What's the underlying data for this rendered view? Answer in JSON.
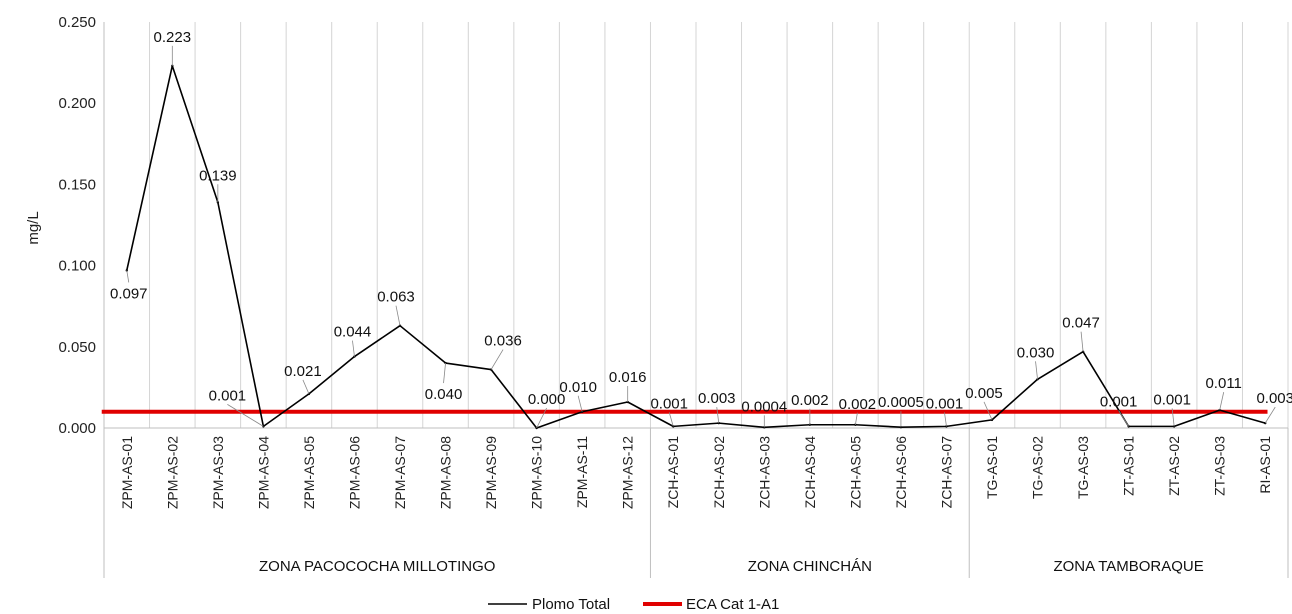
{
  "chart_data": {
    "type": "line",
    "title": "",
    "ylabel": "mg/L",
    "xlabel": "",
    "ylim": [
      0,
      0.25
    ],
    "yticks": [
      "0.000",
      "0.050",
      "0.100",
      "0.150",
      "0.200",
      "0.250"
    ],
    "grid": "vertical",
    "legend_position": "bottom",
    "categories": [
      "ZPM-AS-01",
      "ZPM-AS-02",
      "ZPM-AS-03",
      "ZPM-AS-04",
      "ZPM-AS-05",
      "ZPM-AS-06",
      "ZPM-AS-07",
      "ZPM-AS-08",
      "ZPM-AS-09",
      "ZPM-AS-10",
      "ZPM-AS-11",
      "ZPM-AS-12",
      "ZCH-AS-01",
      "ZCH-AS-02",
      "ZCH-AS-03",
      "ZCH-AS-04",
      "ZCH-AS-05",
      "ZCH-AS-06",
      "ZCH-AS-07",
      "TG-AS-01",
      "TG-AS-02",
      "TG-AS-03",
      "ZT-AS-01",
      "ZT-AS-02",
      "ZT-AS-03",
      "RI-AS-01"
    ],
    "groups": [
      {
        "label": "ZONA PACOCOCHA MILLOTINGO",
        "start": 0,
        "end": 11
      },
      {
        "label": "ZONA CHINCHÁN",
        "start": 12,
        "end": 18
      },
      {
        "label": "ZONA TAMBORAQUE",
        "start": 19,
        "end": 25
      }
    ],
    "series": [
      {
        "name": "Plomo Total",
        "color": "#000000",
        "values": [
          0.097,
          0.223,
          0.139,
          0.001,
          0.021,
          0.044,
          0.063,
          0.04,
          0.036,
          0.0,
          0.01,
          0.016,
          0.001,
          0.003,
          0.0004,
          0.002,
          0.002,
          0.0005,
          0.001,
          0.005,
          0.03,
          0.047,
          0.001,
          0.001,
          0.011,
          0.003
        ],
        "labels": [
          "0.097",
          "0.223",
          "0.139",
          "0.001",
          "0.021",
          "0.044",
          "0.063",
          "0.040",
          "0.036",
          "0.000",
          "0.010",
          "0.016",
          "0.001",
          "0.003",
          "0.0004",
          "0.002",
          "0.002",
          "0.0005",
          "0.001",
          "0.005",
          "0.030",
          "0.047",
          "0.001",
          "0.001",
          "0.011",
          "0.003"
        ]
      },
      {
        "name": "ECA Cat 1-A1",
        "color": "#e00000",
        "constant": 0.01
      }
    ]
  }
}
